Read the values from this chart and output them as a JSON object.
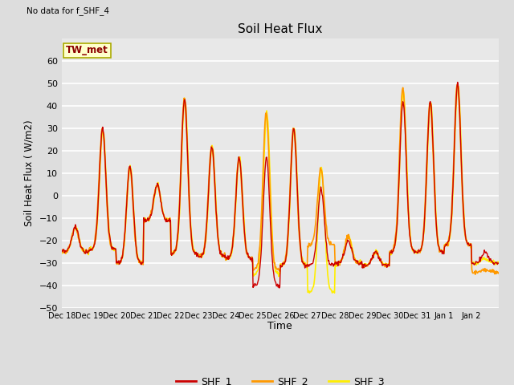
{
  "title": "Soil Heat Flux",
  "ylabel": "Soil Heat Flux ( W/m2)",
  "xlabel": "Time",
  "note": "No data for f_SHF_4",
  "annotation": "TW_met",
  "ylim": [
    -50,
    70
  ],
  "yticks": [
    -50,
    -40,
    -30,
    -20,
    -10,
    0,
    10,
    20,
    30,
    40,
    50,
    60
  ],
  "line_colors": {
    "SHF_1": "#cc0000",
    "SHF_2": "#ff9900",
    "SHF_3": "#ffee00"
  },
  "line_widths": {
    "SHF_1": 1.0,
    "SHF_2": 1.2,
    "SHF_3": 1.2
  },
  "bg_color": "#dddddd",
  "plot_bg_color": "#e8e8e8",
  "legend_entries": [
    "SHF_1",
    "SHF_2",
    "SHF_3"
  ],
  "tick_labels": [
    "Dec 18",
    "Dec 19",
    "Dec 20",
    "Dec 21",
    "Dec 22",
    "Dec 23",
    "Dec 24",
    "Dec 25",
    "Dec 26",
    "Dec 27",
    "Dec 28",
    "Dec 29",
    "Dec 30",
    "Dec 31",
    "Jan 1",
    "Jan 2"
  ],
  "n_days": 16,
  "n_pts_per_day": 48
}
